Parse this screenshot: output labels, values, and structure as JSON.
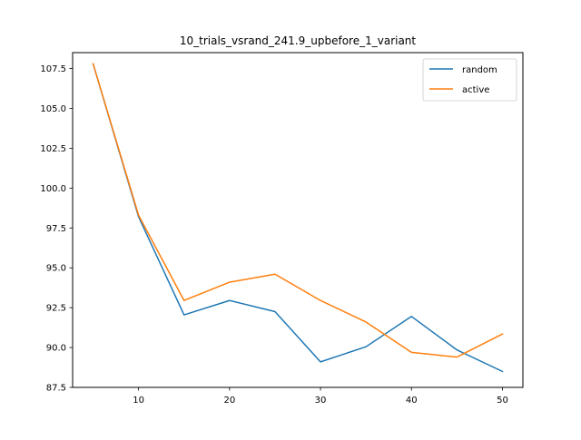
{
  "chart_data": {
    "type": "line",
    "title": "10_trials_vsrand_241.9_upbefore_1_variant",
    "xlabel": "",
    "ylabel": "",
    "xlim": [
      2.75,
      52.25
    ],
    "ylim": [
      87.5,
      108.5
    ],
    "xticks": [
      10,
      20,
      30,
      40,
      50
    ],
    "xtick_labels": [
      "10",
      "20",
      "30",
      "40",
      "50"
    ],
    "yticks": [
      87.5,
      90.0,
      92.5,
      95.0,
      97.5,
      100.0,
      102.5,
      105.0,
      107.5
    ],
    "ytick_labels": [
      "87.5",
      "90.0",
      "92.5",
      "95.0",
      "97.5",
      "100.0",
      "102.5",
      "105.0",
      "107.5"
    ],
    "grid": false,
    "legend_position": "top-right",
    "x": [
      5,
      10,
      15,
      20,
      25,
      30,
      35,
      40,
      45,
      50
    ],
    "series": [
      {
        "name": "random",
        "color": "#1f77b4",
        "values": [
          107.8,
          98.2,
          92.05,
          92.95,
          92.25,
          89.1,
          90.05,
          91.95,
          89.85,
          88.5
        ]
      },
      {
        "name": "active",
        "color": "#ff7f0e",
        "values": [
          107.8,
          98.3,
          92.95,
          94.1,
          94.6,
          92.95,
          91.6,
          89.7,
          89.4,
          90.85
        ]
      }
    ]
  }
}
